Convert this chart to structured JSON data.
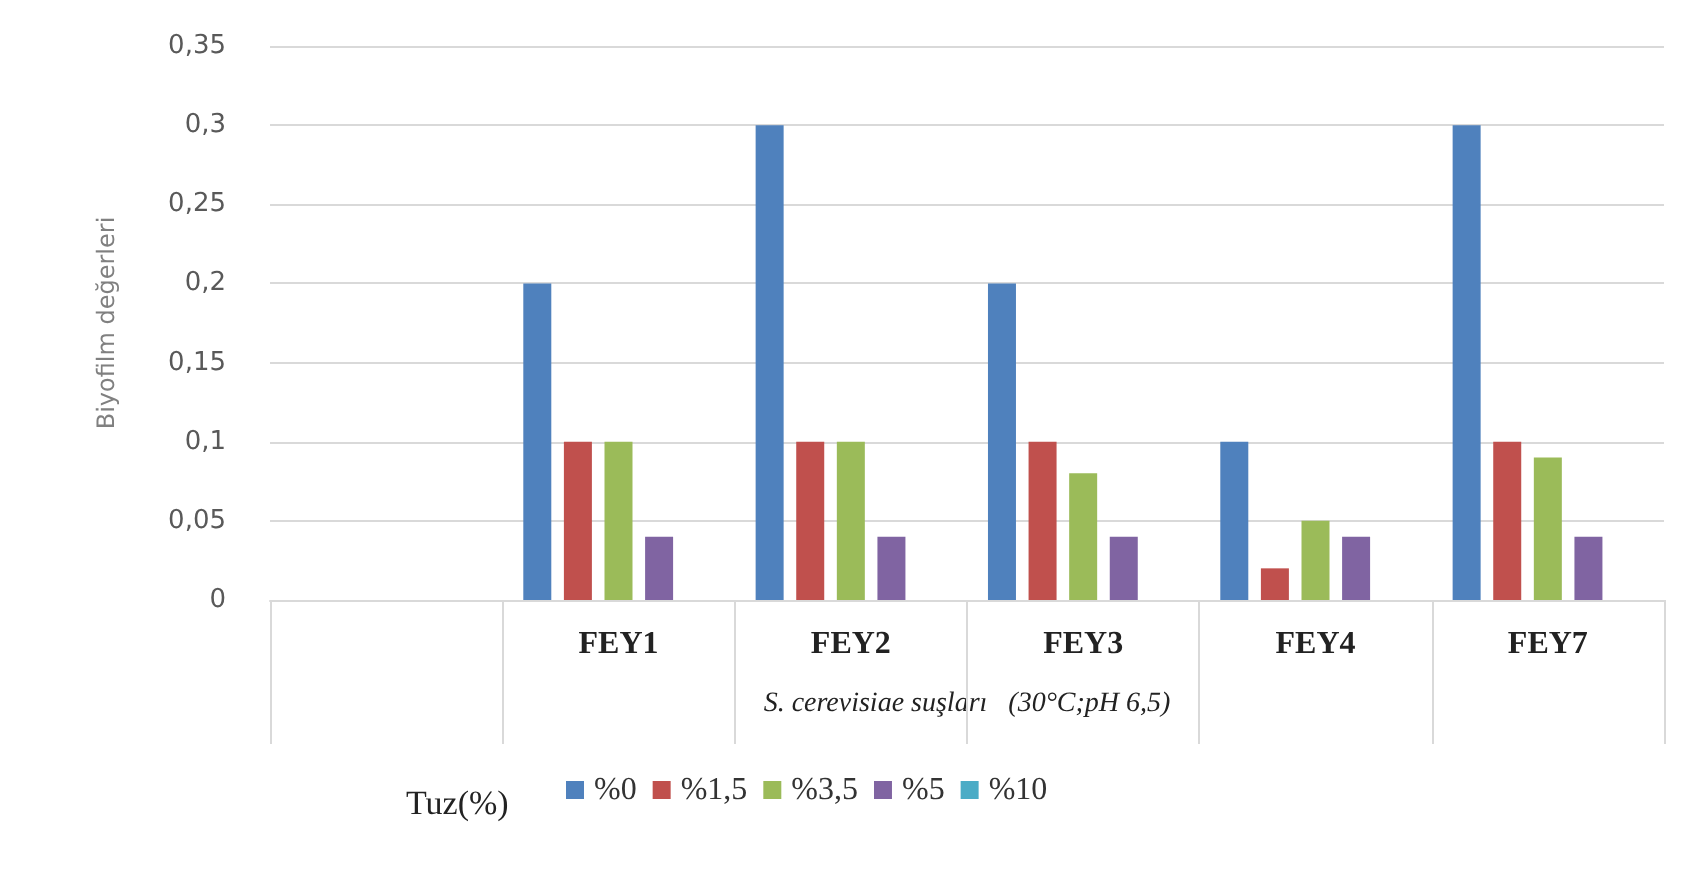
{
  "chart_data": {
    "type": "bar",
    "ylabel": "Biyofilm değerleri",
    "xlabel": "S. cerevisiae suşları   (30°C;pH 6,5)",
    "legend_title": "Tuz(%)",
    "categories": [
      null,
      "FEY1",
      "FEY2",
      "FEY3",
      "FEY4",
      "FEY7"
    ],
    "series": [
      {
        "name": "%0",
        "color": "#4f81bd",
        "values": [
          null,
          0.2,
          0.3,
          0.2,
          0.1,
          0.3
        ]
      },
      {
        "name": "%1,5",
        "color": "#c0504d",
        "values": [
          null,
          0.1,
          0.1,
          0.1,
          0.02,
          0.1
        ]
      },
      {
        "name": "%3,5",
        "color": "#9bbb59",
        "values": [
          null,
          0.1,
          0.1,
          0.08,
          0.05,
          0.09
        ]
      },
      {
        "name": "%5",
        "color": "#8064a2",
        "values": [
          null,
          0.04,
          0.04,
          0.04,
          0.04,
          0.04
        ]
      },
      {
        "name": "%10",
        "color": "#4bacc6",
        "values": [
          null,
          0,
          0,
          0,
          0,
          0
        ]
      }
    ],
    "ylim": [
      0,
      0.35
    ],
    "yticks": [
      0,
      {
        "value": 0.05,
        "label": "0,05"
      },
      {
        "value": 0.1,
        "label": "0,1"
      },
      {
        "value": 0.15,
        "label": "0,15"
      },
      {
        "value": 0.2,
        "label": "0,2"
      },
      {
        "value": 0.25,
        "label": "0,25"
      },
      {
        "value": 0.3,
        "label": "0,3"
      },
      {
        "value": 0.35,
        "label": "0,35"
      }
    ],
    "grid": "y",
    "legend": "bottom"
  }
}
